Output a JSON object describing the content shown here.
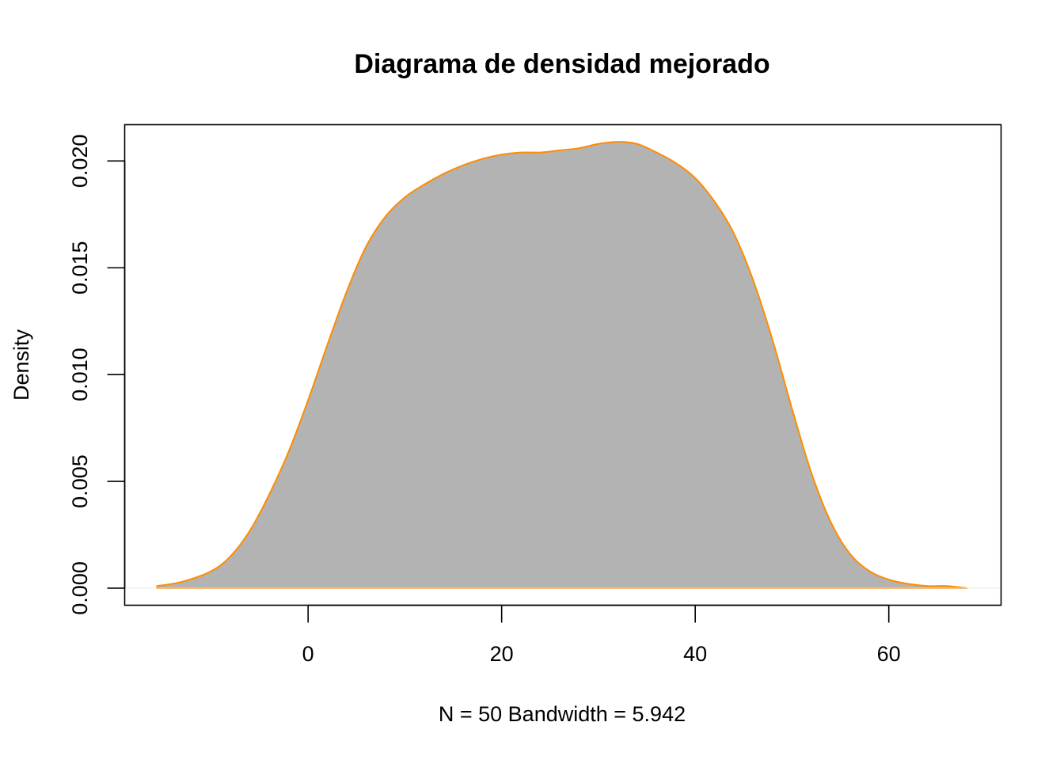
{
  "chart_data": {
    "type": "area",
    "title": "Diagrama de densidad mejorado",
    "xlabel": "N = 50   Bandwidth = 5.942",
    "ylabel": "Density",
    "xlim": [
      -18.95,
      71.6
    ],
    "ylim": [
      -0.0008,
      0.0217
    ],
    "x_ticks": [
      0,
      20,
      40,
      60
    ],
    "x_tick_labels": [
      "0",
      "20",
      "40",
      "60"
    ],
    "y_ticks": [
      0.0,
      0.005,
      0.01,
      0.015,
      0.02
    ],
    "y_tick_labels": [
      "0.000",
      "0.005",
      "0.010",
      "0.015",
      "0.020"
    ],
    "fill_color": "#b3b3b3",
    "line_color": "#ff8c00",
    "grid": false,
    "series": [
      {
        "x": [
          -15.6,
          -13,
          -10,
          -8,
          -6,
          -4,
          -2,
          0,
          2,
          4,
          6,
          8,
          10,
          12,
          14,
          16,
          18,
          20,
          22,
          24,
          26,
          28,
          30,
          32,
          34,
          36,
          38,
          40,
          42,
          44,
          46,
          48,
          50,
          52,
          54,
          56,
          58,
          60,
          62,
          64,
          66,
          68.1
        ],
        "y": [
          0.0001,
          0.0003,
          0.0008,
          0.0015,
          0.0027,
          0.0044,
          0.0064,
          0.0088,
          0.0114,
          0.0139,
          0.016,
          0.0174,
          0.0183,
          0.0189,
          0.0194,
          0.0198,
          0.0201,
          0.0203,
          0.0204,
          0.0204,
          0.0205,
          0.0206,
          0.0208,
          0.0209,
          0.0208,
          0.0204,
          0.0199,
          0.0192,
          0.0181,
          0.0166,
          0.0144,
          0.0116,
          0.0084,
          0.0054,
          0.0031,
          0.0016,
          0.0008,
          0.0004,
          0.0002,
          0.0001,
          0.0001,
          0.0
        ]
      }
    ]
  }
}
